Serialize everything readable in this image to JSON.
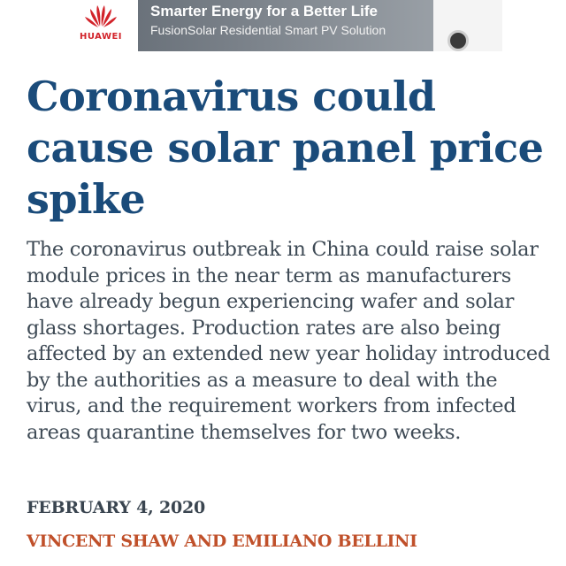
{
  "ad": {
    "brand": "HUAWEI",
    "headline": "Smarter Energy for a Better Life",
    "subline": "FusionSolar Residential Smart PV Solution",
    "brand_color": "#d2232a"
  },
  "article": {
    "title": "Coronavirus could cause solar panel price spike",
    "summary": "The coronavirus outbreak in China could raise solar module prices in the near term as manufacturers have already begun experiencing wafer and solar glass shortages. Production rates are also being affected by an extended new year holiday introduced by the authorities as a measure to deal with the virus, and the requirement workers from infected areas quarantine themselves for two weeks.",
    "date": "FEBRUARY 4, 2020",
    "authors": "VINCENT SHAW AND EMILIANO BELLINI",
    "title_color": "#1a4b7a",
    "author_color": "#c0502a"
  }
}
